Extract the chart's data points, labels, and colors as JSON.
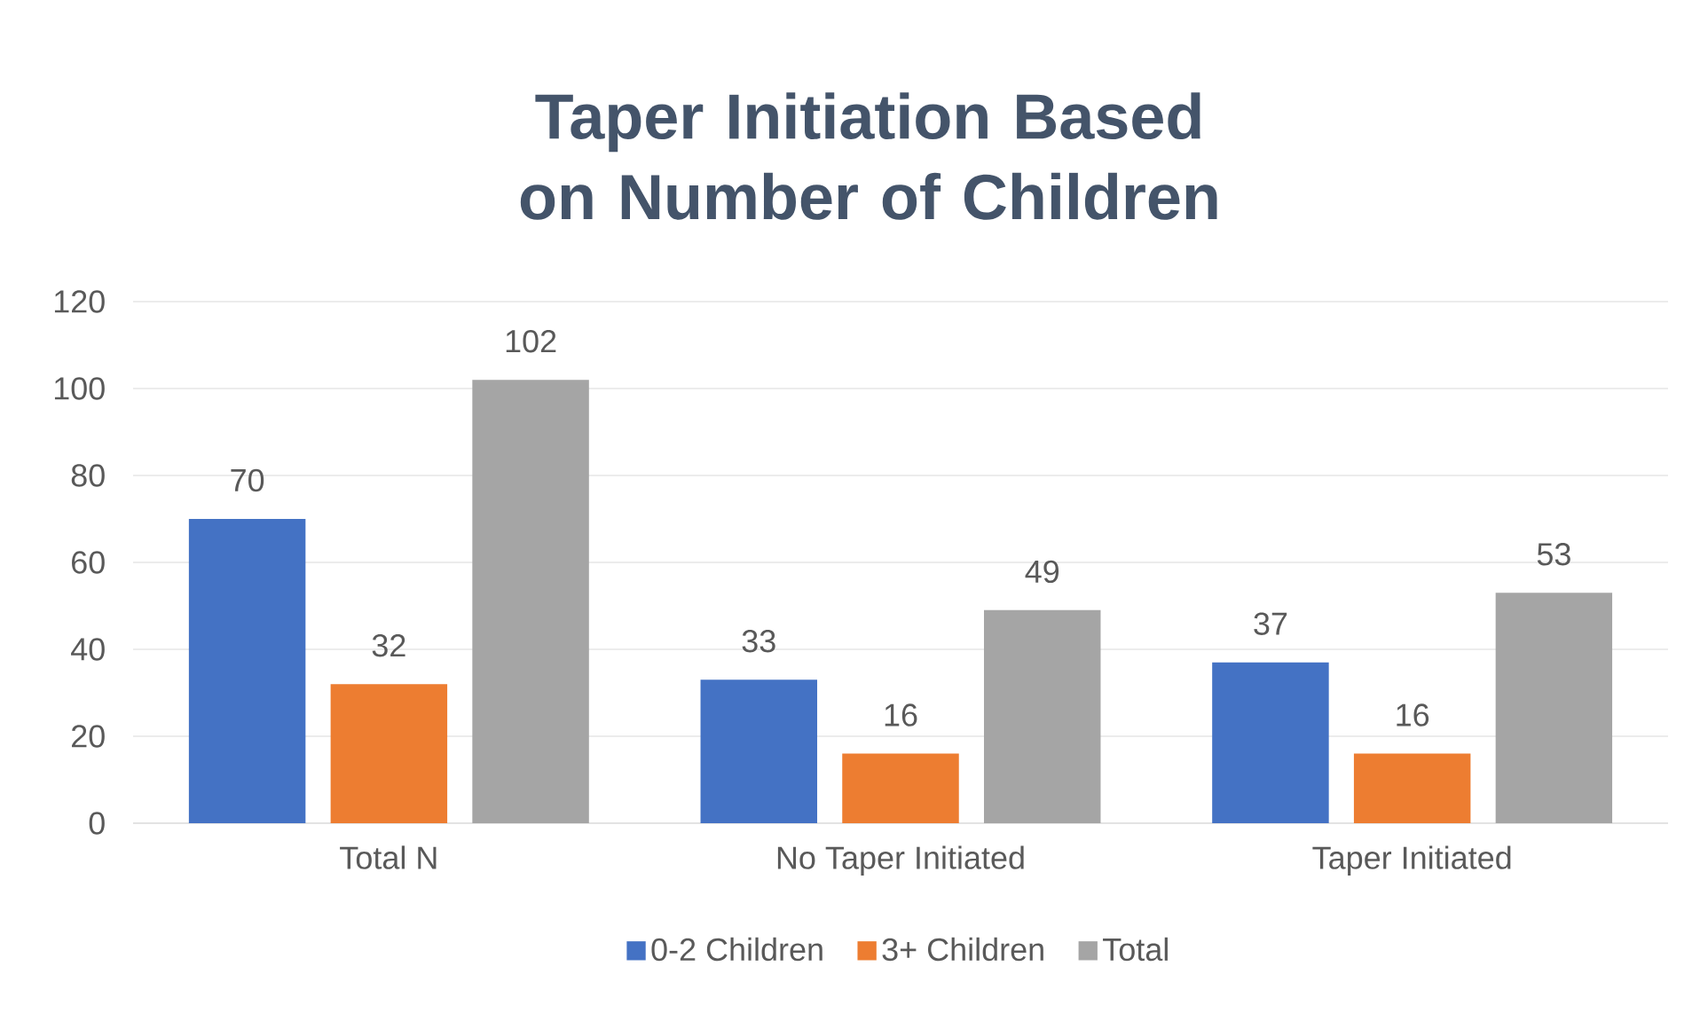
{
  "chart_data": {
    "type": "bar",
    "title": "Taper Initiation Based on Number of Children",
    "categories": [
      "Total N",
      "No Taper Initiated",
      "Taper Initiated"
    ],
    "series": [
      {
        "name": "0-2 Children",
        "color": "#4472c4",
        "values": [
          70,
          33,
          37
        ]
      },
      {
        "name": "3+ Children",
        "color": "#ed7d31",
        "values": [
          32,
          16,
          16
        ]
      },
      {
        "name": "Total",
        "color": "#a5a5a5",
        "values": [
          102,
          49,
          53
        ]
      }
    ],
    "ylim": [
      0,
      120
    ],
    "yticks": [
      0,
      20,
      40,
      60,
      80,
      100,
      120
    ],
    "grid": "y",
    "legend": "bottom",
    "data_labels": true
  }
}
